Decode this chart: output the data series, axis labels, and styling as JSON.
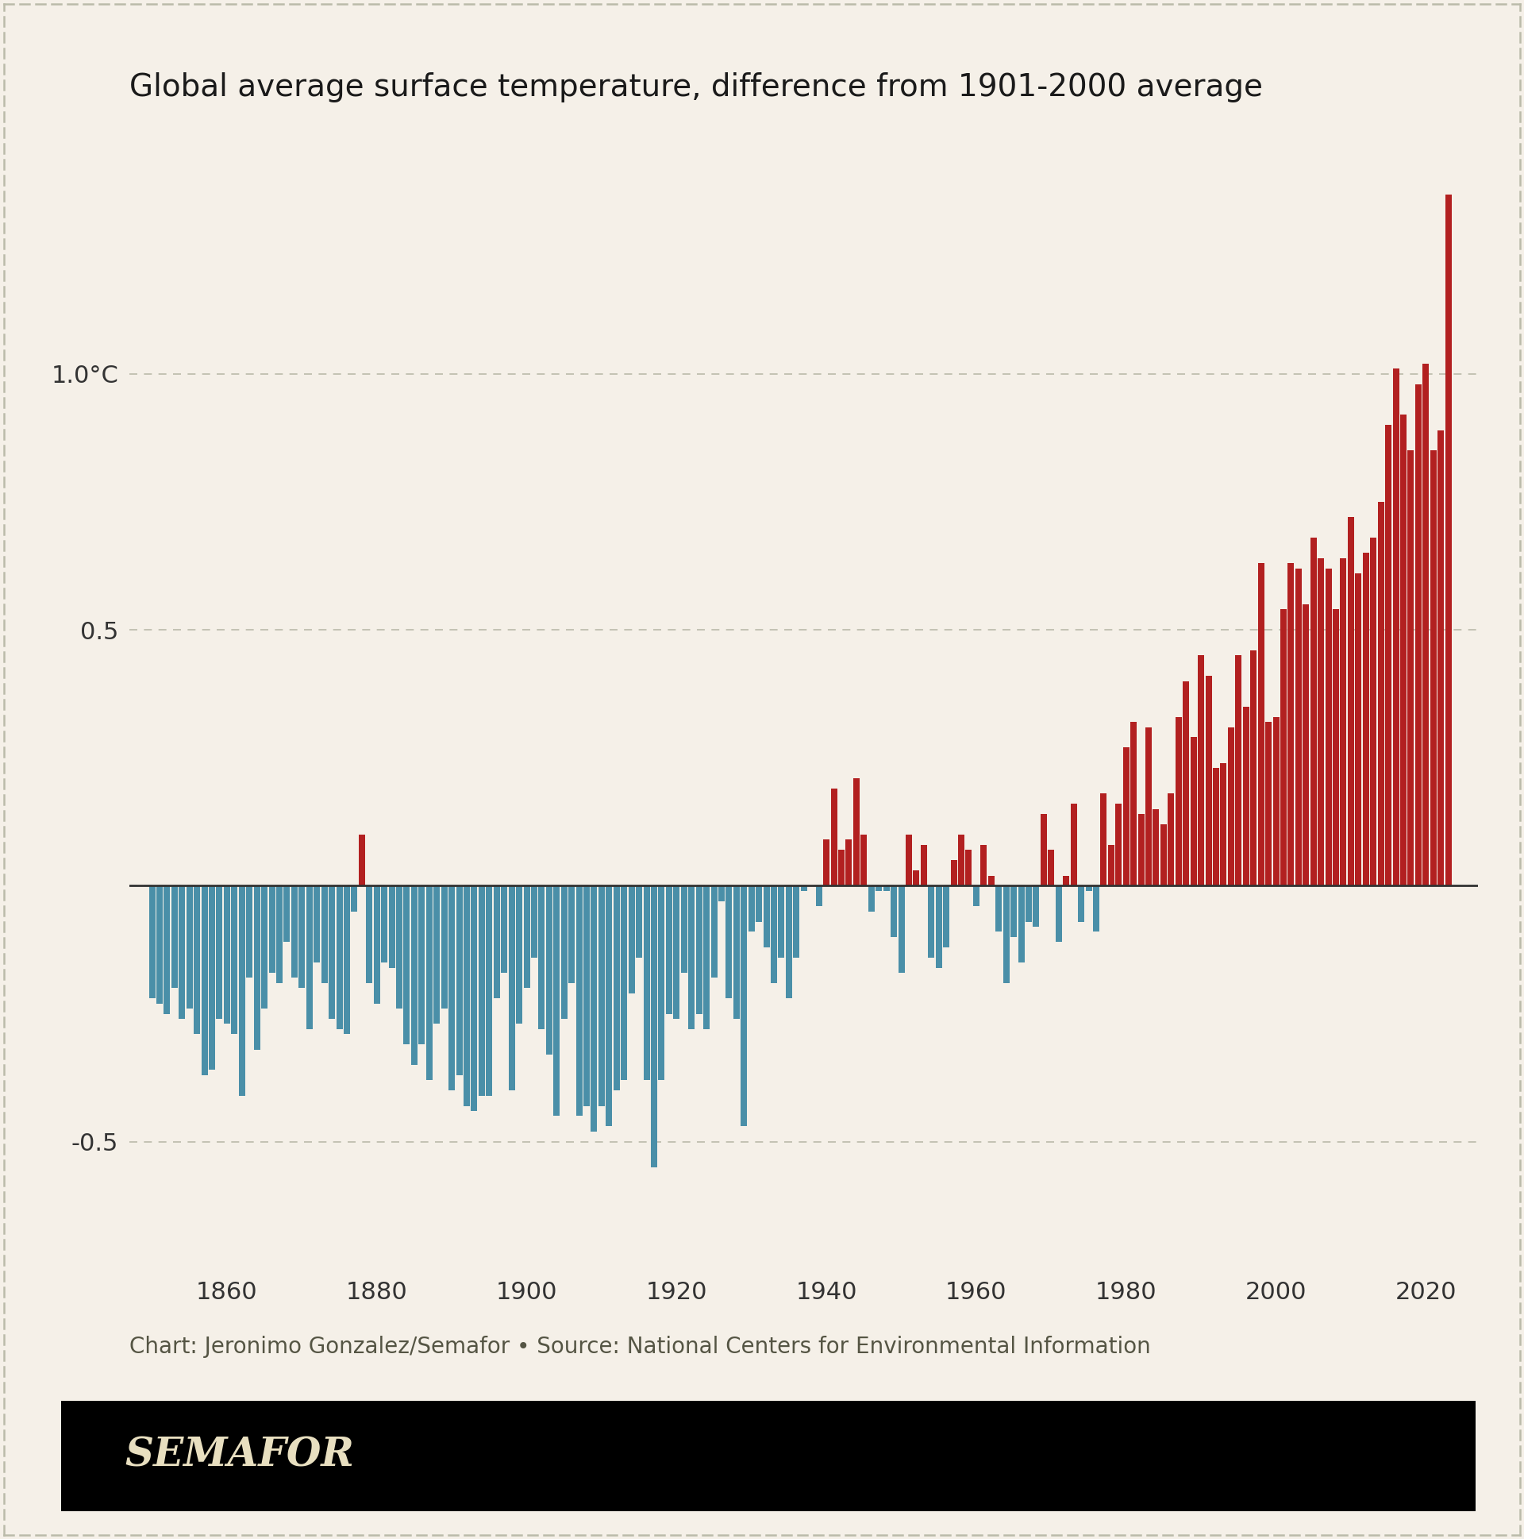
{
  "title": "Global average surface temperature, difference from 1901-2000 average",
  "source_text": "Chart: Jeronimo Gonzalez/Semafor • Source: National Centers for Environmental Information",
  "semafor_label": "SEMAFOR",
  "background_color": "#f5f0e8",
  "bar_color_warm": "#b22020",
  "bar_color_cool": "#4a8fa8",
  "years": [
    1850,
    1851,
    1852,
    1853,
    1854,
    1855,
    1856,
    1857,
    1858,
    1859,
    1860,
    1861,
    1862,
    1863,
    1864,
    1865,
    1866,
    1867,
    1868,
    1869,
    1870,
    1871,
    1872,
    1873,
    1874,
    1875,
    1876,
    1877,
    1878,
    1879,
    1880,
    1881,
    1882,
    1883,
    1884,
    1885,
    1886,
    1887,
    1888,
    1889,
    1890,
    1891,
    1892,
    1893,
    1894,
    1895,
    1896,
    1897,
    1898,
    1899,
    1900,
    1901,
    1902,
    1903,
    1904,
    1905,
    1906,
    1907,
    1908,
    1909,
    1910,
    1911,
    1912,
    1913,
    1914,
    1915,
    1916,
    1917,
    1918,
    1919,
    1920,
    1921,
    1922,
    1923,
    1924,
    1925,
    1926,
    1927,
    1928,
    1929,
    1930,
    1931,
    1932,
    1933,
    1934,
    1935,
    1936,
    1937,
    1938,
    1939,
    1940,
    1941,
    1942,
    1943,
    1944,
    1945,
    1946,
    1947,
    1948,
    1949,
    1950,
    1951,
    1952,
    1953,
    1954,
    1955,
    1956,
    1957,
    1958,
    1959,
    1960,
    1961,
    1962,
    1963,
    1964,
    1965,
    1966,
    1967,
    1968,
    1969,
    1970,
    1971,
    1972,
    1973,
    1974,
    1975,
    1976,
    1977,
    1978,
    1979,
    1980,
    1981,
    1982,
    1983,
    1984,
    1985,
    1986,
    1987,
    1988,
    1989,
    1990,
    1991,
    1992,
    1993,
    1994,
    1995,
    1996,
    1997,
    1998,
    1999,
    2000,
    2001,
    2002,
    2003,
    2004,
    2005,
    2006,
    2007,
    2008,
    2009,
    2010,
    2011,
    2012,
    2013,
    2014,
    2015,
    2016,
    2017,
    2018,
    2019,
    2020,
    2021,
    2022,
    2023
  ],
  "anomalies": [
    -0.22,
    -0.23,
    -0.25,
    -0.2,
    -0.26,
    -0.24,
    -0.29,
    -0.37,
    -0.36,
    -0.26,
    -0.27,
    -0.29,
    -0.41,
    -0.18,
    -0.32,
    -0.24,
    -0.17,
    -0.19,
    -0.11,
    -0.18,
    -0.2,
    -0.28,
    -0.15,
    -0.19,
    -0.26,
    -0.28,
    -0.29,
    -0.05,
    0.1,
    -0.19,
    -0.23,
    -0.15,
    -0.16,
    -0.24,
    -0.31,
    -0.35,
    -0.31,
    -0.38,
    -0.27,
    -0.24,
    -0.4,
    -0.37,
    -0.43,
    -0.44,
    -0.41,
    -0.41,
    -0.22,
    -0.17,
    -0.4,
    -0.27,
    -0.2,
    -0.14,
    -0.28,
    -0.33,
    -0.45,
    -0.26,
    -0.19,
    -0.45,
    -0.43,
    -0.48,
    -0.43,
    -0.47,
    -0.4,
    -0.38,
    -0.21,
    -0.14,
    -0.38,
    -0.55,
    -0.38,
    -0.25,
    -0.26,
    -0.17,
    -0.28,
    -0.25,
    -0.28,
    -0.18,
    -0.03,
    -0.22,
    -0.26,
    -0.47,
    -0.09,
    -0.07,
    -0.12,
    -0.19,
    -0.14,
    -0.22,
    -0.14,
    -0.01,
    -0.0,
    -0.04,
    0.09,
    0.19,
    0.07,
    0.09,
    0.21,
    0.1,
    -0.05,
    -0.01,
    -0.01,
    -0.1,
    -0.17,
    0.1,
    0.03,
    0.08,
    -0.14,
    -0.16,
    -0.12,
    0.05,
    0.1,
    0.07,
    -0.04,
    0.08,
    0.02,
    -0.09,
    -0.19,
    -0.1,
    -0.15,
    -0.07,
    -0.08,
    0.14,
    0.07,
    -0.11,
    0.02,
    0.16,
    -0.07,
    -0.01,
    -0.09,
    0.18,
    0.08,
    0.16,
    0.27,
    0.32,
    0.14,
    0.31,
    0.15,
    0.12,
    0.18,
    0.33,
    0.4,
    0.29,
    0.45,
    0.41,
    0.23,
    0.24,
    0.31,
    0.45,
    0.35,
    0.46,
    0.63,
    0.32,
    0.33,
    0.54,
    0.63,
    0.62,
    0.55,
    0.68,
    0.64,
    0.62,
    0.54,
    0.64,
    0.72,
    0.61,
    0.65,
    0.68,
    0.75,
    0.9,
    1.01,
    0.92,
    0.85,
    0.98,
    1.02,
    0.85,
    0.89,
    1.35
  ],
  "ylim": [
    -0.75,
    1.55
  ],
  "yticks": [
    -0.5,
    0.5,
    1.0
  ],
  "ytick_labels": [
    "-0.5",
    "0.5",
    "1.0°C"
  ],
  "extra_gridlines": [
    -0.5,
    0.0,
    0.5,
    1.0
  ],
  "xtick_years": [
    1860,
    1880,
    1900,
    1920,
    1940,
    1960,
    1980,
    2000,
    2020
  ],
  "grid_color": "#bbbbaa",
  "zero_line_color": "#333333",
  "title_fontsize": 28,
  "axis_fontsize": 22,
  "source_fontsize": 20,
  "semafor_fontsize": 36
}
